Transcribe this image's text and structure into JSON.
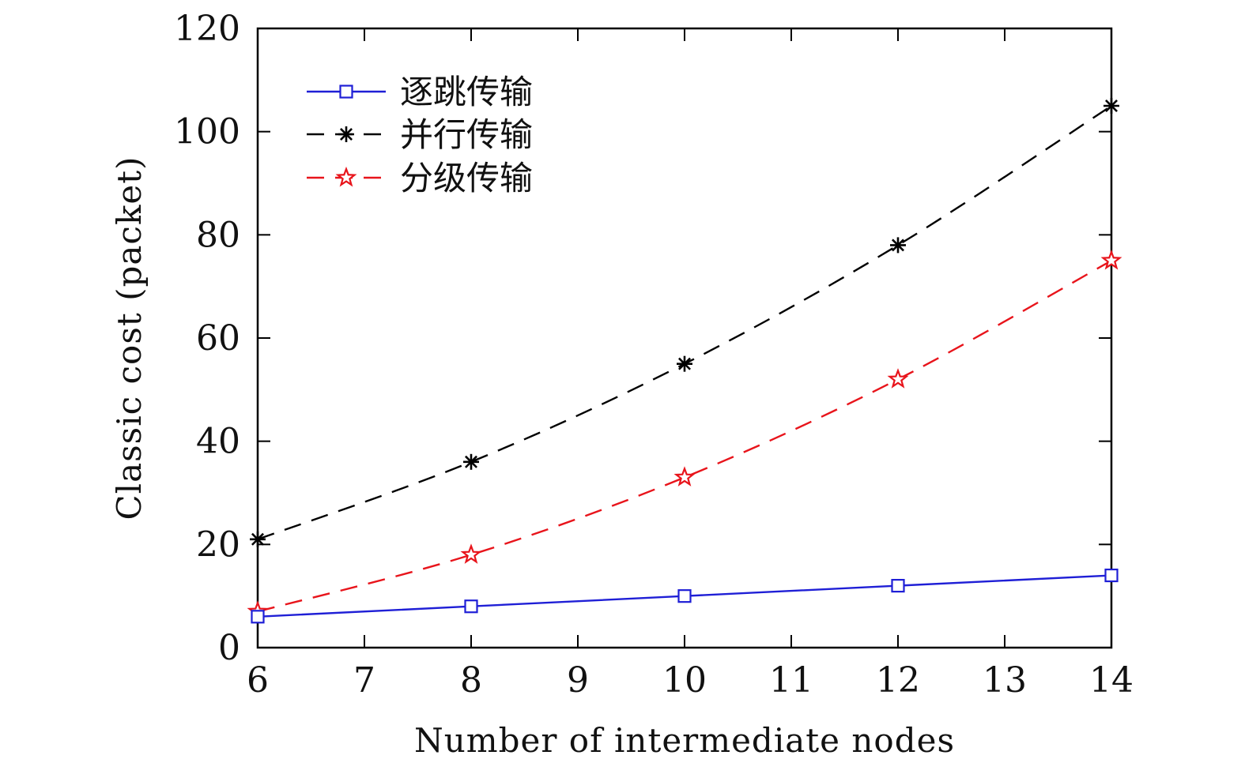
{
  "chart_data": {
    "type": "line",
    "title": "",
    "xlabel": "Number of intermediate nodes",
    "ylabel": "Classic cost (packet)",
    "xlim": [
      6,
      14
    ],
    "ylim": [
      0,
      120
    ],
    "xticks": [
      6,
      7,
      8,
      9,
      10,
      11,
      12,
      13,
      14
    ],
    "yticks": [
      0,
      20,
      40,
      60,
      80,
      100,
      120
    ],
    "grid": false,
    "legend_position": "top-left",
    "series": [
      {
        "name": "逐跳传输",
        "color": "#1f1fd6",
        "line_style": "solid",
        "marker": "square",
        "x": [
          6,
          8,
          10,
          12,
          14
        ],
        "y": [
          6,
          8,
          10,
          12,
          14
        ]
      },
      {
        "name": "并行传输",
        "color": "#000000",
        "line_style": "dashed",
        "marker": "asterisk",
        "x": [
          6,
          8,
          10,
          12,
          14
        ],
        "y": [
          21,
          36,
          55,
          78,
          105
        ]
      },
      {
        "name": "分级传输",
        "color": "#e8141b",
        "line_style": "dashed",
        "marker": "star",
        "x": [
          6,
          8,
          10,
          12,
          14
        ],
        "y": [
          7,
          18,
          33,
          52,
          75
        ]
      }
    ]
  }
}
